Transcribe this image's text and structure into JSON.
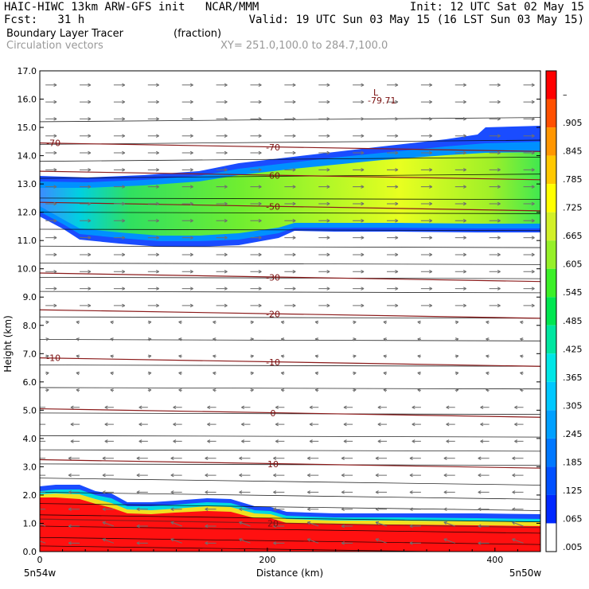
{
  "header": {
    "line1_left": "HAIC-HIWC 13km ARW-GFS init   NCAR/MMM",
    "line1_right": "Init: 12 UTC Sat 02 May 15",
    "line2_left": "Fcst:   31 h",
    "line2_right": "Valid: 19 UTC Sun 03 May 15 (16 LST Sun 03 May 15)",
    "field_name": "Boundary Layer Tracer",
    "field_units": "(fraction)",
    "vector_name": "Circulation vectors",
    "xsec_coords": "XY= 251.0,100.0 to 284.7,100.0"
  },
  "chart_data": {
    "type": "heatmap",
    "title": "Boundary Layer Tracer (fraction)",
    "xlabel": "Distance (km)",
    "ylabel": "Height (km)",
    "xlim": [
      0,
      440
    ],
    "ylim": [
      0,
      17
    ],
    "x_ticks": [
      0,
      200,
      400
    ],
    "x_end_labels": {
      "left": "5n54w",
      "right": "5n50w"
    },
    "y_ticks": [
      "0.0",
      "1.0",
      "2.0",
      "3.0",
      "4.0",
      "5.0",
      "6.0",
      "7.0",
      "8.0",
      "9.0",
      "10.0",
      "11.0",
      "12.0",
      "13.0",
      "14.0",
      "15.0",
      "16.0",
      "17.0"
    ],
    "colorbar": {
      "labels": [
        ".005",
        ".065",
        ".125",
        ".185",
        ".245",
        ".305",
        ".365",
        ".425",
        ".485",
        ".545",
        ".605",
        ".665",
        ".725",
        ".785",
        ".845",
        ".905",
        "–"
      ],
      "colors": [
        "#ffffff",
        "#0028ff",
        "#0050ff",
        "#0078ff",
        "#00a0ff",
        "#00c8ff",
        "#00e6e6",
        "#00e6a0",
        "#00e650",
        "#3cf028",
        "#96f028",
        "#d2f028",
        "#ffff00",
        "#ffc800",
        "#ff9600",
        "#ff5000",
        "#ff0000"
      ]
    },
    "tracer_regions": [
      {
        "name": "Upper tracer layer",
        "base_km": [
          12.0,
          11.0,
          10.8,
          10.8,
          11.1,
          11.2,
          11.3,
          11.3,
          11.3
        ],
        "top_km": [
          13.3,
          13.3,
          13.5,
          14.0,
          14.5,
          14.5,
          14.2,
          14.6,
          15.1
        ],
        "x_km": [
          0,
          50,
          100,
          150,
          200,
          250,
          300,
          380,
          440
        ]
      },
      {
        "name": "Boundary layer",
        "top_km": [
          2.3,
          2.4,
          2.0,
          1.9,
          2.0,
          1.6,
          1.5,
          1.5,
          1.4
        ],
        "x_km": [
          0,
          40,
          80,
          120,
          160,
          200,
          260,
          350,
          440
        ]
      }
    ],
    "temperature_contours_c": [
      {
        "value": "-70",
        "height_km": 14.3
      },
      {
        "value": "-60",
        "height_km": 13.3
      },
      {
        "value": "-50",
        "height_km": 12.2
      },
      {
        "value": "-30",
        "height_km": 9.7
      },
      {
        "value": "-20",
        "height_km": 8.4
      },
      {
        "value": "-10",
        "height_km": 6.7
      },
      {
        "value": "0",
        "height_km": 4.9
      },
      {
        "value": "10",
        "height_km": 3.1
      },
      {
        "value": "20",
        "height_km": 1.0
      }
    ],
    "low_label": {
      "symbol": "L",
      "value": "-79.71"
    }
  }
}
